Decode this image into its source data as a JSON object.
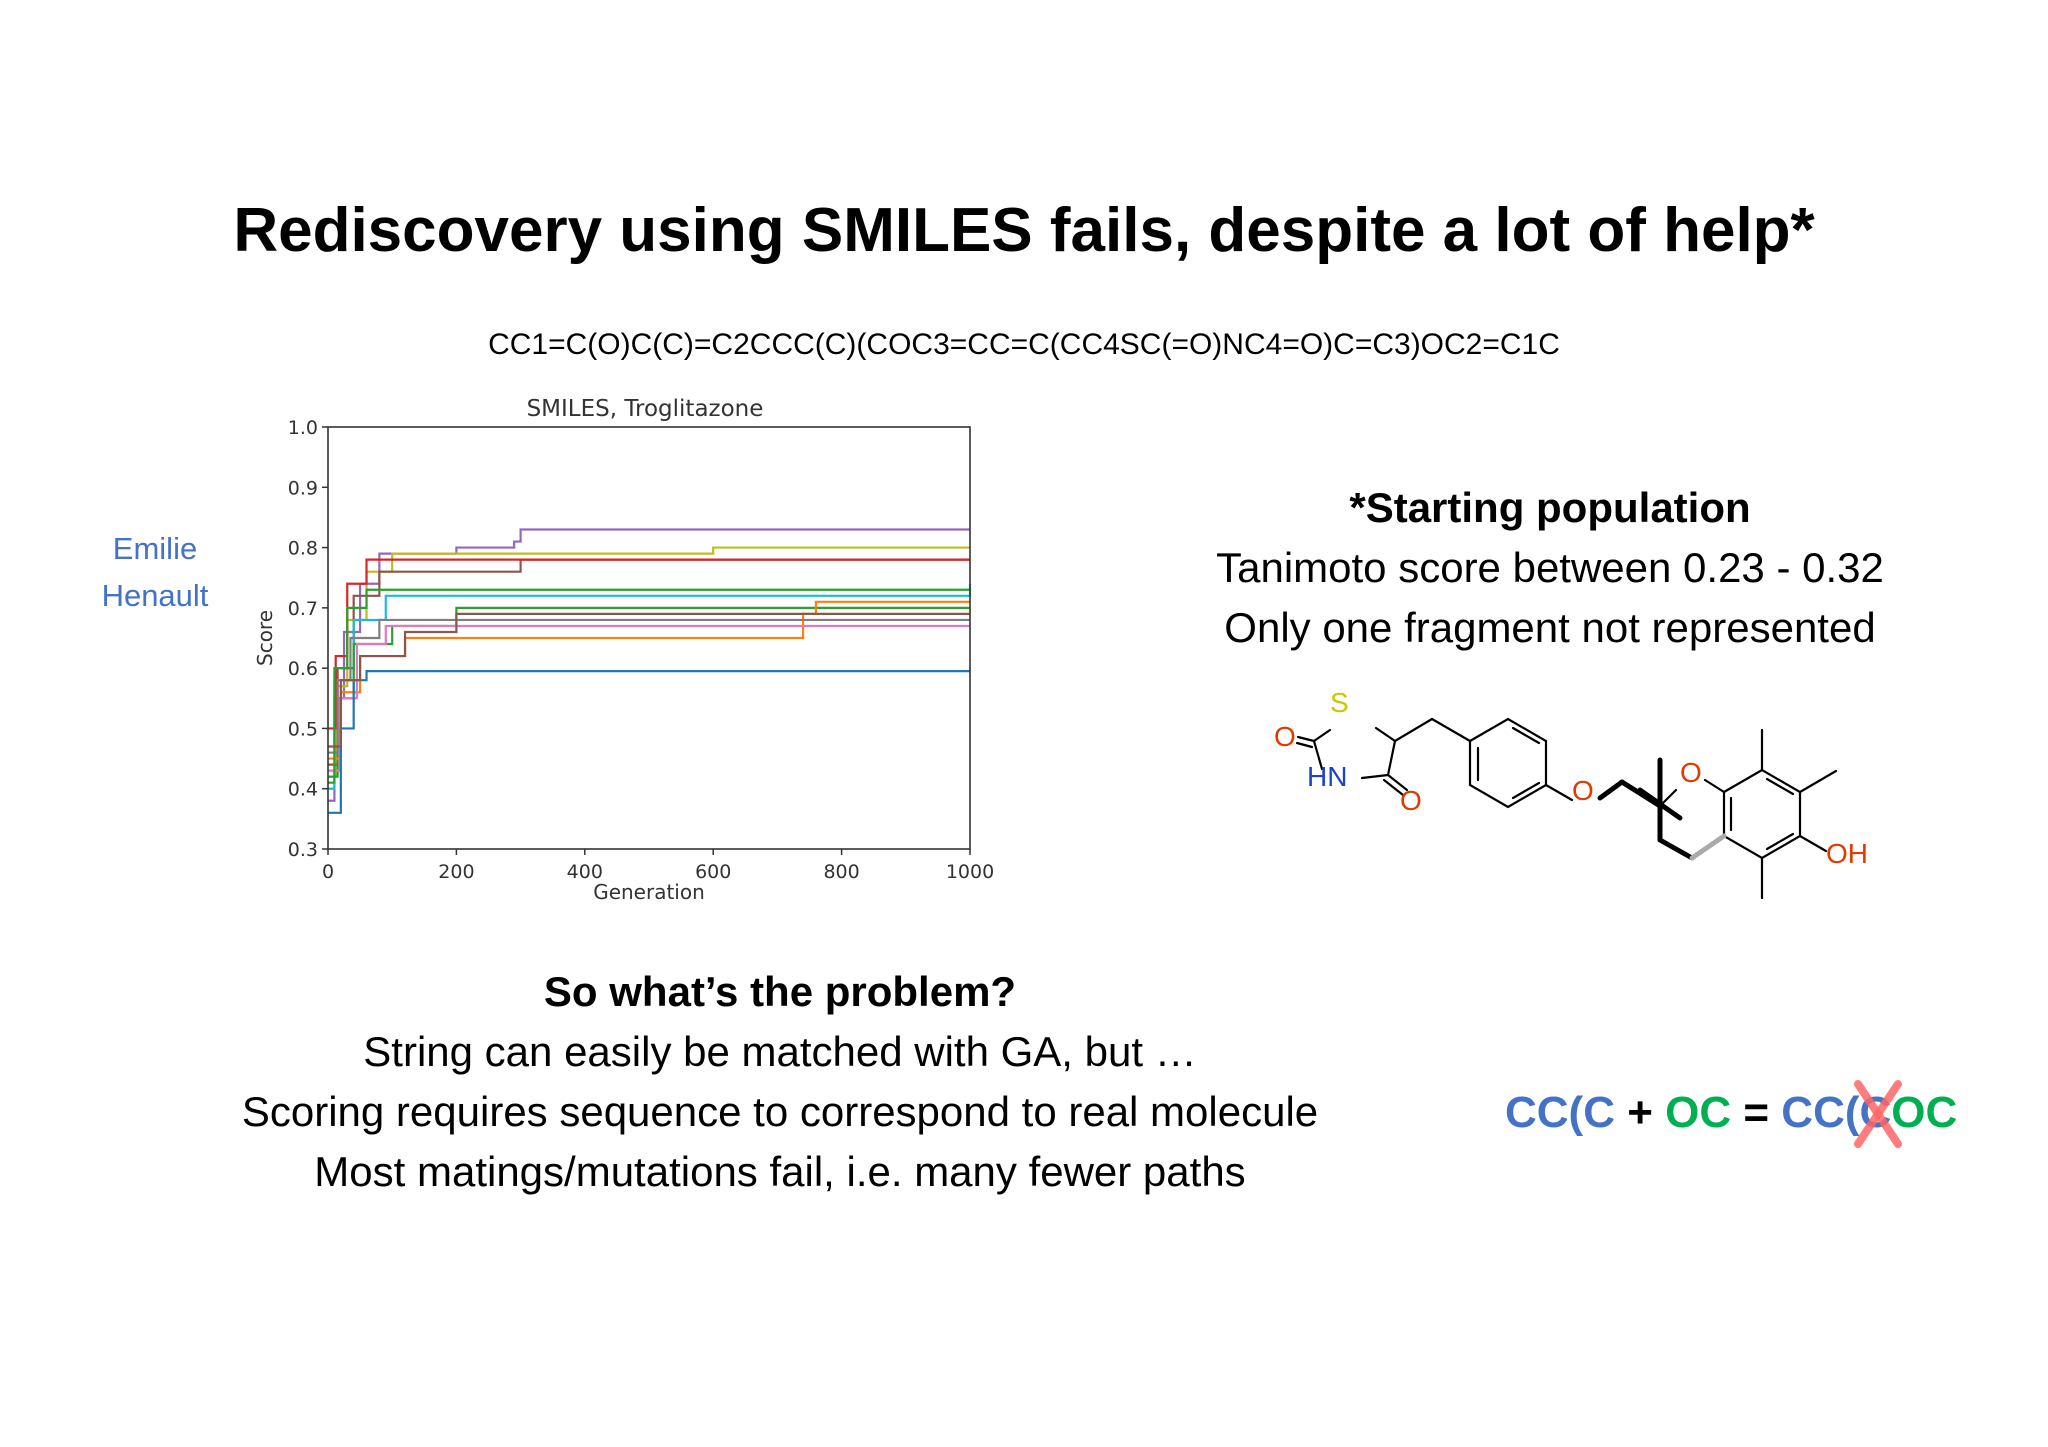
{
  "title": "Rediscovery using SMILES fails, despite a lot of help*",
  "smiles_string": "CC1=C(O)C(C)=C2CCC(C)(COC3=CC=C(CC4SC(=O)NC4=O)C=C3)OC2=C1C",
  "author": {
    "line1": "Emilie",
    "line2": "Henault"
  },
  "chart_data": {
    "type": "line",
    "title": "SMILES, Troglitazone",
    "xlabel": "Generation",
    "ylabel": "Score",
    "xlim": [
      0,
      1000
    ],
    "ylim": [
      0.3,
      1.0
    ],
    "xticks": [
      "0",
      "200",
      "400",
      "600",
      "800",
      "1000"
    ],
    "yticks": [
      "0.3",
      "0.4",
      "0.5",
      "0.6",
      "0.7",
      "0.8",
      "0.9",
      "1.0"
    ],
    "grid": false,
    "series": [
      {
        "color": "#9467bd",
        "points": [
          [
            0,
            0.38
          ],
          [
            10,
            0.55
          ],
          [
            25,
            0.66
          ],
          [
            50,
            0.74
          ],
          [
            80,
            0.79
          ],
          [
            200,
            0.8
          ],
          [
            290,
            0.81
          ],
          [
            300,
            0.83
          ],
          [
            1000,
            0.83
          ]
        ]
      },
      {
        "color": "#bcbd22",
        "points": [
          [
            0,
            0.42
          ],
          [
            12,
            0.57
          ],
          [
            30,
            0.68
          ],
          [
            60,
            0.76
          ],
          [
            100,
            0.79
          ],
          [
            580,
            0.79
          ],
          [
            600,
            0.8
          ],
          [
            1000,
            0.8
          ]
        ]
      },
      {
        "color": "#8c564b",
        "points": [
          [
            0,
            0.44
          ],
          [
            15,
            0.6
          ],
          [
            40,
            0.72
          ],
          [
            80,
            0.76
          ],
          [
            300,
            0.78
          ],
          [
            1000,
            0.78
          ]
        ]
      },
      {
        "color": "#17becf",
        "points": [
          [
            0,
            0.4
          ],
          [
            10,
            0.58
          ],
          [
            40,
            0.68
          ],
          [
            90,
            0.72
          ],
          [
            1000,
            0.74
          ]
        ]
      },
      {
        "color": "#2ca02c",
        "points": [
          [
            0,
            0.42
          ],
          [
            15,
            0.55
          ],
          [
            40,
            0.64
          ],
          [
            100,
            0.67
          ],
          [
            200,
            0.7
          ],
          [
            1000,
            0.7
          ]
        ]
      },
      {
        "color": "#ff7f0e",
        "points": [
          [
            0,
            0.45
          ],
          [
            20,
            0.56
          ],
          [
            50,
            0.62
          ],
          [
            120,
            0.65
          ],
          [
            730,
            0.65
          ],
          [
            740,
            0.69
          ],
          [
            760,
            0.71
          ],
          [
            1000,
            0.71
          ]
        ]
      },
      {
        "color": "#d62728",
        "points": [
          [
            0,
            0.5
          ],
          [
            12,
            0.62
          ],
          [
            30,
            0.74
          ],
          [
            60,
            0.78
          ],
          [
            1000,
            0.78
          ]
        ]
      },
      {
        "color": "#e377c2",
        "points": [
          [
            0,
            0.43
          ],
          [
            18,
            0.55
          ],
          [
            45,
            0.64
          ],
          [
            90,
            0.67
          ],
          [
            1000,
            0.67
          ]
        ]
      },
      {
        "color": "#1f77b4",
        "points": [
          [
            0,
            0.36
          ],
          [
            20,
            0.5
          ],
          [
            40,
            0.58
          ],
          [
            60,
            0.595
          ],
          [
            1000,
            0.595
          ]
        ]
      },
      {
        "color": "#7f7f7f",
        "points": [
          [
            0,
            0.46
          ],
          [
            15,
            0.58
          ],
          [
            35,
            0.65
          ],
          [
            80,
            0.68
          ],
          [
            1000,
            0.68
          ]
        ]
      },
      {
        "color": "#2ca02c",
        "points": [
          [
            0,
            0.41
          ],
          [
            10,
            0.6
          ],
          [
            30,
            0.7
          ],
          [
            60,
            0.73
          ],
          [
            1000,
            0.73
          ]
        ]
      },
      {
        "color": "#8c564b",
        "points": [
          [
            0,
            0.47
          ],
          [
            20,
            0.58
          ],
          [
            50,
            0.62
          ],
          [
            120,
            0.66
          ],
          [
            200,
            0.69
          ],
          [
            1000,
            0.69
          ]
        ]
      }
    ]
  },
  "starting_population": {
    "heading": "*Starting population",
    "line1": "Tanimoto score between 0.23 - 0.32",
    "line2": "Only one fragment not represented"
  },
  "molecule": {
    "atom_S": "S",
    "atom_O1": "O",
    "atom_HN": "HN",
    "atom_O2": "O",
    "atom_O3": "O",
    "atom_O4": "O",
    "atom_OH": "OH"
  },
  "problem": {
    "heading": "So what’s the problem?",
    "line1": "String can easily be matched with GA, but …",
    "line2": "Scoring requires sequence to correspond to real molecule",
    "line3": "Most matings/mutations fail, i.e. many fewer paths"
  },
  "equation": {
    "part1": "CC(C",
    "plus": " + ",
    "part2": "OC",
    "equals": " = ",
    "result_a": "CC(",
    "result_b": "C",
    "result_c": "OC",
    "colors": {
      "blue": "#4472C4",
      "green": "#00B050",
      "cross": "#FF6666"
    }
  }
}
